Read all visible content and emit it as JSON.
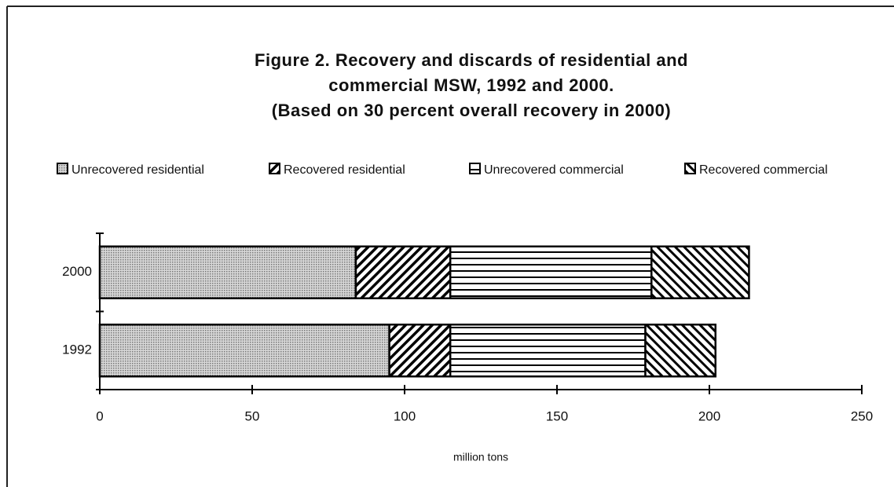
{
  "chart_data": {
    "type": "stacked-barh",
    "title": [
      "Figure 2. Recovery and discards of residential and",
      "commercial MSW, 1992 and 2000.",
      "(Based on 30 percent overall recovery in 2000)"
    ],
    "xlabel": "million tons",
    "categories": [
      "1992",
      "2000"
    ],
    "series": [
      {
        "name": "Unrecovered residential",
        "color": "#999999",
        "pattern": "dots",
        "values": [
          95,
          84
        ]
      },
      {
        "name": "Recovered residential",
        "color": "#000000",
        "pattern": "hatch-forward",
        "values": [
          20,
          31
        ]
      },
      {
        "name": "Unrecovered commercial",
        "color": "#000000",
        "pattern": "horizontal",
        "values": [
          64,
          66
        ]
      },
      {
        "name": "Recovered commercial",
        "color": "#000000",
        "pattern": "hatch-back",
        "values": [
          23,
          32
        ]
      }
    ],
    "xlim": [
      0,
      250
    ],
    "xticks": [
      0,
      50,
      100,
      150,
      200,
      250
    ],
    "legend": "top"
  }
}
